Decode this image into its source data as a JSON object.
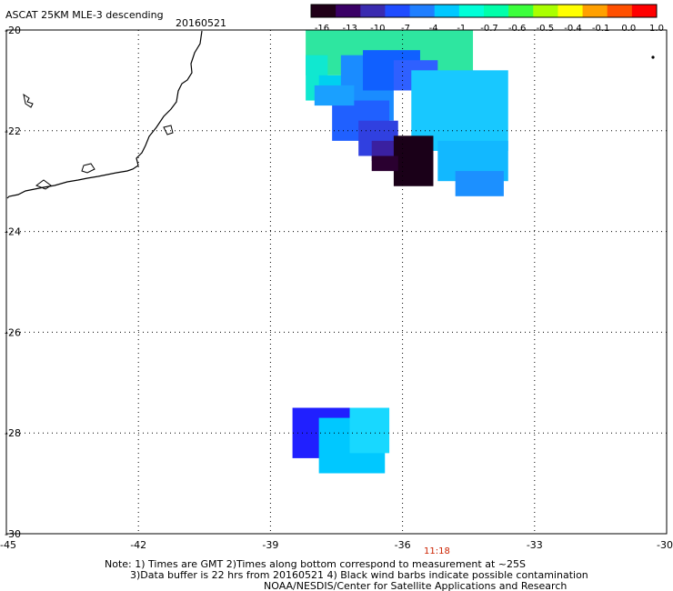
{
  "title": "ASCAT 25KM MLE-3 descending",
  "date": "20160521",
  "colorbar": {
    "ticks": [
      "-16",
      "-13",
      "-10",
      "-7",
      "-4",
      "-1",
      "-0.7",
      "-0.6",
      "-0.5",
      "-0.4",
      "-0.1",
      "0.0",
      "1.0"
    ],
    "colors": [
      "#200018",
      "#3a0066",
      "#3a2bb0",
      "#1f4cff",
      "#1f7fff",
      "#00c8ff",
      "#00ffd8",
      "#00ffaa",
      "#3cff3c",
      "#aaff00",
      "#ffff00",
      "#ffa000",
      "#ff5000",
      "#ff0000"
    ]
  },
  "axes": {
    "x_ticks": [
      "-45",
      "-42",
      "-39",
      "-36",
      "-33",
      "-30"
    ],
    "y_ticks": [
      "-20",
      "-22",
      "-24",
      "-26",
      "-28",
      "-30"
    ],
    "lon_range": [
      -45,
      -30
    ],
    "lat_range": [
      -30,
      -20
    ]
  },
  "time_label": "11:18",
  "notes": {
    "line1": "Note: 1) Times are GMT 2)Times along bottom correspond to measurement at ~25S",
    "line2": "3)Data buffer is 22 hrs from 20160521 4) Black wind barbs indicate possible contamination",
    "line3": "NOAA/NESDIS/Center for Satellite Applications and Research"
  },
  "colors": {
    "grid": "#000000",
    "time_label": "#cc2200",
    "coast": "#000000"
  },
  "data_cells": [
    {
      "lon": -38.2,
      "lat": -20.0,
      "w": 3.8,
      "h": 0.9,
      "color": "#2ee6a0"
    },
    {
      "lon": -38.2,
      "lat": -20.5,
      "w": 0.5,
      "h": 0.9,
      "color": "#10e8d0"
    },
    {
      "lon": -37.9,
      "lat": -20.9,
      "w": 1.0,
      "h": 0.5,
      "color": "#00d0f0"
    },
    {
      "lon": -37.4,
      "lat": -20.5,
      "w": 1.2,
      "h": 1.3,
      "color": "#1a8cff"
    },
    {
      "lon": -36.9,
      "lat": -20.4,
      "w": 1.3,
      "h": 0.8,
      "color": "#1060ff"
    },
    {
      "lon": -36.2,
      "lat": -20.6,
      "w": 1.0,
      "h": 0.6,
      "color": "#2f60ff"
    },
    {
      "lon": -35.8,
      "lat": -20.8,
      "w": 2.2,
      "h": 1.6,
      "color": "#18c8ff"
    },
    {
      "lon": -35.2,
      "lat": -22.2,
      "w": 1.6,
      "h": 0.8,
      "color": "#12b8ff"
    },
    {
      "lon": -34.8,
      "lat": -22.8,
      "w": 1.1,
      "h": 0.5,
      "color": "#1c90ff"
    },
    {
      "lon": -37.6,
      "lat": -21.4,
      "w": 1.3,
      "h": 0.8,
      "color": "#2060ff"
    },
    {
      "lon": -37.0,
      "lat": -21.8,
      "w": 0.9,
      "h": 0.7,
      "color": "#3040e0"
    },
    {
      "lon": -36.7,
      "lat": -22.2,
      "w": 0.6,
      "h": 0.4,
      "color": "#3a20a0"
    },
    {
      "lon": -36.2,
      "lat": -22.1,
      "w": 0.9,
      "h": 1.0,
      "color": "#1a0018"
    },
    {
      "lon": -36.7,
      "lat": -22.5,
      "w": 0.6,
      "h": 0.3,
      "color": "#2a0030"
    },
    {
      "lon": -38.0,
      "lat": -21.1,
      "w": 0.9,
      "h": 0.4,
      "color": "#1aa0ff"
    },
    {
      "lon": -38.5,
      "lat": -27.5,
      "w": 1.4,
      "h": 1.0,
      "color": "#2020ff"
    },
    {
      "lon": -37.9,
      "lat": -27.7,
      "w": 1.5,
      "h": 1.1,
      "color": "#00c8ff"
    },
    {
      "lon": -37.2,
      "lat": -27.5,
      "w": 0.9,
      "h": 0.9,
      "color": "#18d8ff"
    }
  ]
}
